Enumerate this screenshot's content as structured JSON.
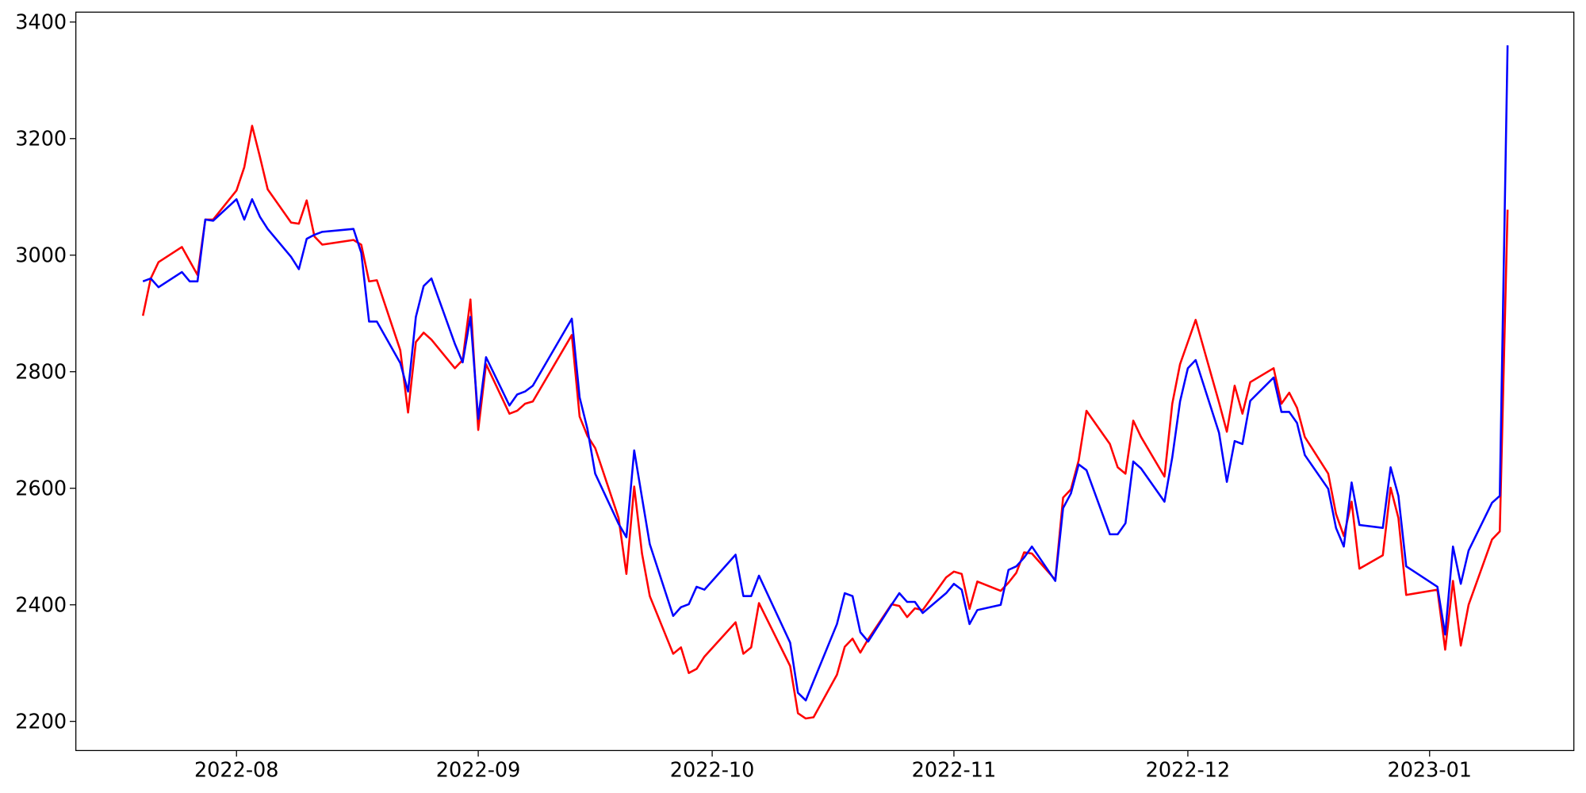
{
  "chart_data": {
    "type": "line",
    "x": [
      -12,
      -11,
      -10,
      -7,
      -6,
      -5,
      -4,
      -3,
      0,
      1,
      2,
      3,
      4,
      7,
      8,
      9,
      10,
      11,
      15,
      16,
      17,
      18,
      21,
      22,
      23,
      24,
      25,
      28,
      29,
      30,
      31,
      32,
      35,
      36,
      37,
      38,
      43,
      44,
      45,
      46,
      49,
      50,
      51,
      52,
      53,
      56,
      57,
      58,
      59,
      60,
      64,
      65,
      66,
      67,
      71,
      72,
      73,
      74,
      77,
      78,
      79,
      80,
      81,
      84,
      85,
      86,
      87,
      88,
      91,
      92,
      93,
      94,
      95,
      98,
      99,
      100,
      101,
      102,
      105,
      106,
      107,
      108,
      109,
      112,
      113,
      114,
      115,
      116,
      119,
      120,
      121,
      122,
      123,
      126,
      127,
      128,
      129,
      130,
      133,
      134,
      135,
      136,
      137,
      140,
      141,
      142,
      143,
      144,
      147,
      148,
      149,
      150,
      154,
      155,
      156,
      157,
      158,
      161,
      162,
      163
    ],
    "series": [
      {
        "color": "#ff0000",
        "values": [
          2896,
          2960,
          2988,
          3014,
          2990,
          2966,
          3061,
          3061,
          3111,
          3151,
          3222,
          3169,
          3113,
          3056,
          3054,
          3094,
          3032,
          3018,
          3026,
          3018,
          2955,
          2957,
          2837,
          2730,
          2851,
          2867,
          2855,
          2806,
          2820,
          2924,
          2700,
          2813,
          2728,
          2733,
          2745,
          2749,
          2863,
          2723,
          2690,
          2669,
          2549,
          2453,
          2603,
          2488,
          2415,
          2316,
          2327,
          2283,
          2290,
          2311,
          2370,
          2316,
          2327,
          2403,
          2295,
          2214,
          2205,
          2207,
          2280,
          2328,
          2342,
          2318,
          2341,
          2401,
          2398,
          2379,
          2394,
          2391,
          2447,
          2457,
          2453,
          2393,
          2440,
          2424,
          2438,
          2455,
          2490,
          2488,
          2443,
          2584,
          2598,
          2648,
          2733,
          2676,
          2636,
          2625,
          2716,
          2688,
          2620,
          2745,
          2813,
          2851,
          2889,
          2747,
          2697,
          2776,
          2728,
          2782,
          2806,
          2745,
          2764,
          2738,
          2688,
          2625,
          2556,
          2518,
          2577,
          2462,
          2485,
          2601,
          2549,
          2417,
          2426,
          2323,
          2441,
          2330,
          2400,
          2512,
          2526,
          3078
        ]
      },
      {
        "color": "#0000ff",
        "values": [
          2955,
          2960,
          2945,
          2971,
          2955,
          2955,
          3061,
          3059,
          3096,
          3061,
          3096,
          3066,
          3045,
          2997,
          2976,
          3028,
          3035,
          3040,
          3045,
          3004,
          2886,
          2886,
          2815,
          2766,
          2894,
          2947,
          2960,
          2848,
          2816,
          2894,
          2719,
          2825,
          2742,
          2761,
          2766,
          2776,
          2891,
          2756,
          2702,
          2625,
          2539,
          2516,
          2665,
          2584,
          2504,
          2381,
          2396,
          2401,
          2431,
          2426,
          2486,
          2415,
          2415,
          2450,
          2335,
          2249,
          2236,
          2269,
          2367,
          2420,
          2415,
          2353,
          2337,
          2400,
          2420,
          2405,
          2405,
          2386,
          2420,
          2436,
          2426,
          2367,
          2391,
          2400,
          2460,
          2466,
          2481,
          2500,
          2441,
          2566,
          2591,
          2641,
          2631,
          2521,
          2521,
          2540,
          2646,
          2634,
          2577,
          2653,
          2749,
          2806,
          2820,
          2695,
          2611,
          2681,
          2676,
          2750,
          2790,
          2731,
          2731,
          2712,
          2657,
          2599,
          2532,
          2500,
          2610,
          2537,
          2532,
          2636,
          2587,
          2466,
          2431,
          2349,
          2500,
          2436,
          2493,
          2575,
          2587,
          3360
        ]
      }
    ],
    "xlim": [
      -20.6,
      171.5
    ],
    "xticks": [
      {
        "value": 0,
        "label": "2022-08"
      },
      {
        "value": 31,
        "label": "2022-09"
      },
      {
        "value": 61,
        "label": "2022-10"
      },
      {
        "value": 92,
        "label": "2022-11"
      },
      {
        "value": 122,
        "label": "2022-12"
      },
      {
        "value": 153,
        "label": "2023-01"
      }
    ],
    "ylim": [
      2150,
      3417
    ],
    "yticks": [
      2200,
      2400,
      2600,
      2800,
      3000,
      3200,
      3400
    ]
  }
}
